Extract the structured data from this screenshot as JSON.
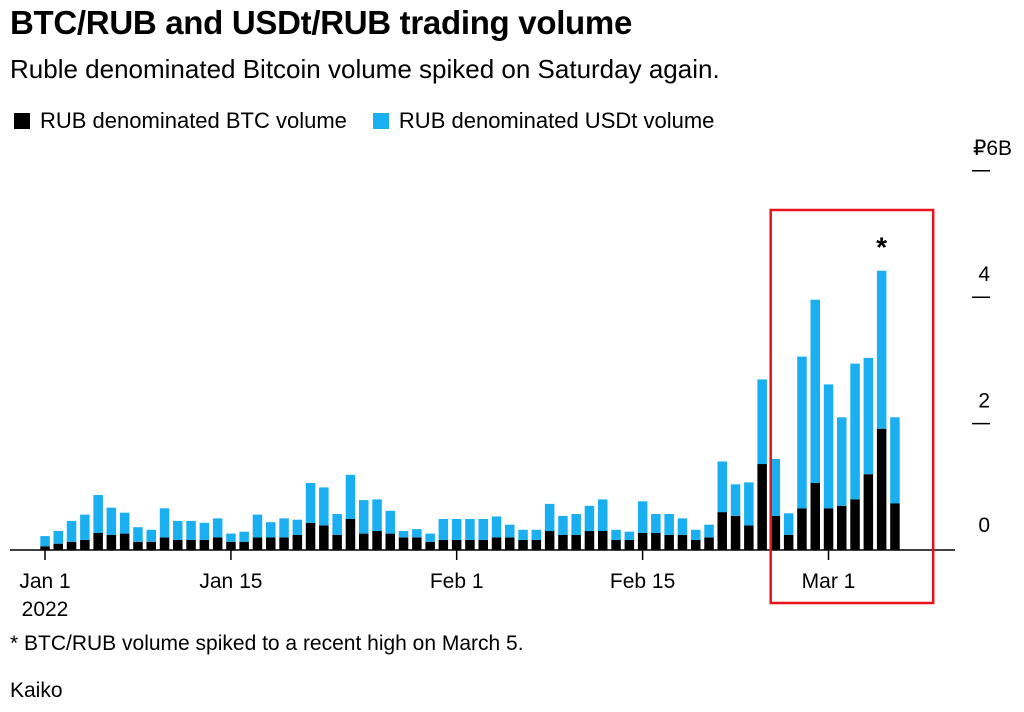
{
  "title": "BTC/RUB and USDt/RUB trading volume",
  "subtitle": "Ruble denominated Bitcoin volume spiked on Saturday again.",
  "footnote": "* BTC/RUB volume spiked to a recent high on March 5.",
  "source": "Kaiko",
  "colors": {
    "btc": "#000000",
    "usdt": "#1aaff0",
    "highlight": "#e8141c"
  },
  "chart_data": {
    "type": "bar",
    "stacked": true,
    "title": "BTC/RUB and USDt/RUB trading volume",
    "subtitle": "Ruble denominated Bitcoin volume spiked on Saturday again.",
    "ylabel": "",
    "ylim": [
      0,
      6
    ],
    "y_ticks": [
      {
        "value": 0,
        "label": "0"
      },
      {
        "value": 2,
        "label": "2"
      },
      {
        "value": 4,
        "label": "4"
      },
      {
        "value": 6,
        "label": "₽6B"
      }
    ],
    "x_ticks": [
      {
        "date": "2022-01-01",
        "label": "Jan 1",
        "label2": "2022"
      },
      {
        "date": "2022-01-15",
        "label": "Jan 15"
      },
      {
        "date": "2022-02-01",
        "label": "Feb 1"
      },
      {
        "date": "2022-02-15",
        "label": "Feb 15"
      },
      {
        "date": "2022-03-01",
        "label": "Mar 1"
      }
    ],
    "legend_position": "top-left",
    "grid": false,
    "annotation": {
      "date": "2022-03-05",
      "text": "*"
    },
    "highlight_range": [
      "2022-02-26",
      "2022-03-07"
    ],
    "dates": [
      "2022-01-01",
      "2022-01-02",
      "2022-01-03",
      "2022-01-04",
      "2022-01-05",
      "2022-01-06",
      "2022-01-07",
      "2022-01-08",
      "2022-01-09",
      "2022-01-10",
      "2022-01-11",
      "2022-01-12",
      "2022-01-13",
      "2022-01-14",
      "2022-01-15",
      "2022-01-16",
      "2022-01-17",
      "2022-01-18",
      "2022-01-19",
      "2022-01-20",
      "2022-01-21",
      "2022-01-22",
      "2022-01-23",
      "2022-01-24",
      "2022-01-25",
      "2022-01-26",
      "2022-01-27",
      "2022-01-28",
      "2022-01-29",
      "2022-01-30",
      "2022-01-31",
      "2022-02-01",
      "2022-02-02",
      "2022-02-03",
      "2022-02-04",
      "2022-02-05",
      "2022-02-06",
      "2022-02-07",
      "2022-02-08",
      "2022-02-09",
      "2022-02-10",
      "2022-02-11",
      "2022-02-12",
      "2022-02-13",
      "2022-02-14",
      "2022-02-15",
      "2022-02-16",
      "2022-02-17",
      "2022-02-18",
      "2022-02-19",
      "2022-02-20",
      "2022-02-21",
      "2022-02-22",
      "2022-02-23",
      "2022-02-24",
      "2022-02-25",
      "2022-02-26",
      "2022-02-27",
      "2022-02-28",
      "2022-03-01",
      "2022-03-02",
      "2022-03-03",
      "2022-03-04",
      "2022-03-05",
      "2022-03-06"
    ],
    "series": [
      {
        "name": "RUB denominated BTC volume",
        "values": [
          0.06,
          0.1,
          0.13,
          0.16,
          0.27,
          0.24,
          0.26,
          0.13,
          0.13,
          0.2,
          0.16,
          0.16,
          0.16,
          0.2,
          0.13,
          0.13,
          0.2,
          0.2,
          0.2,
          0.24,
          0.43,
          0.39,
          0.24,
          0.49,
          0.26,
          0.3,
          0.26,
          0.2,
          0.2,
          0.13,
          0.16,
          0.16,
          0.16,
          0.16,
          0.2,
          0.2,
          0.16,
          0.16,
          0.3,
          0.24,
          0.24,
          0.3,
          0.3,
          0.16,
          0.16,
          0.27,
          0.27,
          0.24,
          0.24,
          0.16,
          0.2,
          0.6,
          0.54,
          0.39,
          1.36,
          0.54,
          0.24,
          0.66,
          1.06,
          0.66,
          0.7,
          0.8,
          1.2,
          1.92,
          0.74
        ]
      },
      {
        "name": "RUB denominated USDt volume",
        "values": [
          0.16,
          0.2,
          0.33,
          0.4,
          0.6,
          0.43,
          0.33,
          0.23,
          0.19,
          0.46,
          0.3,
          0.3,
          0.27,
          0.3,
          0.13,
          0.16,
          0.36,
          0.24,
          0.3,
          0.24,
          0.63,
          0.6,
          0.33,
          0.7,
          0.53,
          0.5,
          0.36,
          0.1,
          0.13,
          0.13,
          0.33,
          0.33,
          0.33,
          0.33,
          0.33,
          0.2,
          0.16,
          0.16,
          0.43,
          0.3,
          0.33,
          0.4,
          0.5,
          0.16,
          0.13,
          0.5,
          0.3,
          0.33,
          0.26,
          0.16,
          0.2,
          0.8,
          0.5,
          0.68,
          1.34,
          0.9,
          0.34,
          2.4,
          2.9,
          1.96,
          1.4,
          2.15,
          1.84,
          2.5,
          1.36
        ]
      }
    ]
  }
}
